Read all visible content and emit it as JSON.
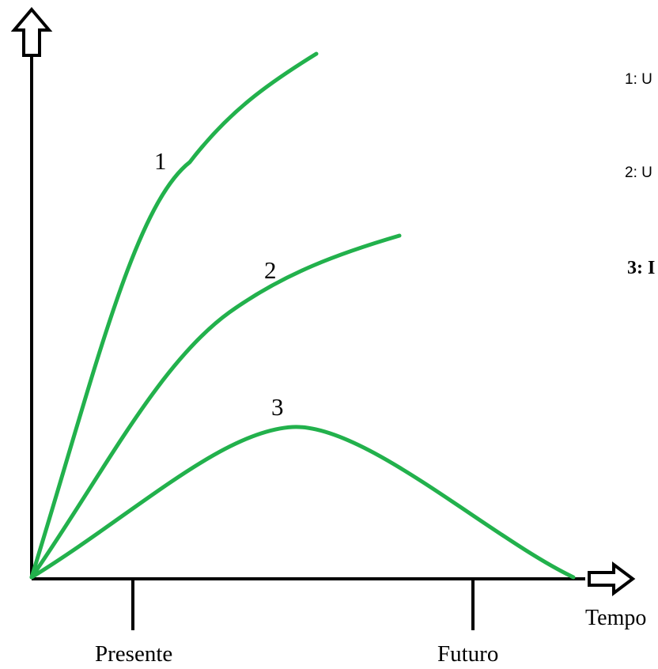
{
  "diagram": {
    "axis_x_label": "Tempo",
    "ticks": [
      {
        "label": "Presente"
      },
      {
        "label": "Futuro"
      }
    ],
    "curves": [
      {
        "label": "1",
        "color": "#22b14c"
      },
      {
        "label": "2",
        "color": "#22b14c"
      },
      {
        "label": "3",
        "color": "#22b14c"
      }
    ],
    "legend": [
      {
        "text": "1: U"
      },
      {
        "text": "2: U"
      },
      {
        "text": "3: I"
      }
    ]
  }
}
